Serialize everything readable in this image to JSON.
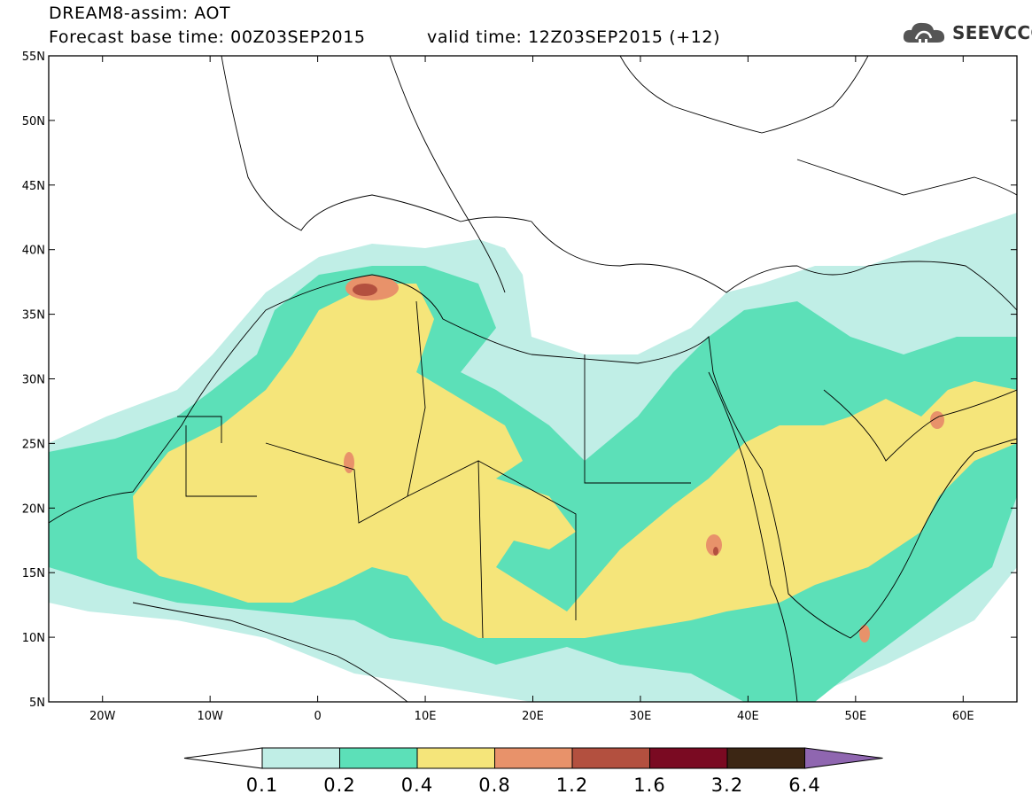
{
  "header": {
    "title": "DREAM8-assim: AOT",
    "base_time": "Forecast base time: 00Z03SEP2015",
    "valid_time": "valid time: 12Z03SEP2015 (+12)",
    "logo_text": "SEEVCCC"
  },
  "map": {
    "lat_labels": [
      "55N",
      "50N",
      "45N",
      "40N",
      "35N",
      "30N",
      "25N",
      "20N",
      "15N",
      "10N",
      "5N"
    ],
    "lat_values": [
      55,
      50,
      45,
      40,
      35,
      30,
      25,
      20,
      15,
      10,
      5
    ],
    "lon_labels": [
      "20W",
      "10W",
      "0",
      "10E",
      "20E",
      "30E",
      "40E",
      "50E",
      "60E"
    ],
    "lon_values": [
      -20,
      -10,
      0,
      10,
      20,
      30,
      40,
      50,
      60
    ],
    "extent": {
      "lon_min": -25,
      "lon_max": 65,
      "lat_min": 5,
      "lat_max": 55
    }
  },
  "legend": {
    "levels": [
      "0.1",
      "0.2",
      "0.4",
      "0.8",
      "1.2",
      "1.6",
      "3.2",
      "6.4"
    ],
    "colors": [
      "#c0eee6",
      "#5ce0b8",
      "#f5e57a",
      "#e8926a",
      "#b3503f",
      "#7a0a22",
      "#3c2614",
      "#8f66b0"
    ],
    "under_color": "#ffffff"
  }
}
